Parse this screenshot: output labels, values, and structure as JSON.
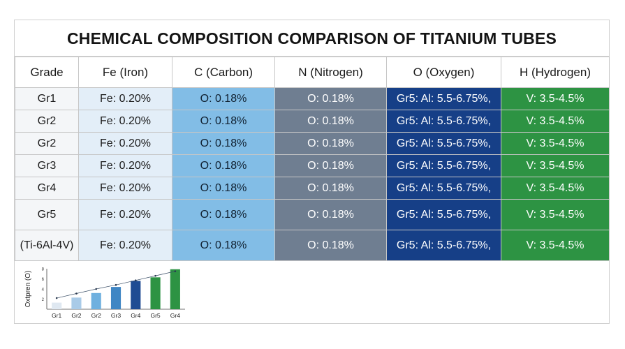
{
  "title": "CHEMICAL COMPOSITION COMPARISON OF TITANIUM TUBES",
  "table": {
    "headers": [
      "Grade",
      "Fe (Iron)",
      "C (Carbon)",
      "N (Nitrogen)",
      "O (Oxygen)",
      "H (Hydrogen)"
    ],
    "rows": [
      [
        "Gr1",
        "Fe: 0.20%",
        "O: 0.18%",
        "O: 0.18%",
        "Gr5: Al: 5.5-6.75%,",
        "V: 3.5-4.5%"
      ],
      [
        "Gr2",
        "Fe: 0.20%",
        "O: 0.18%",
        "O: 0.18%",
        "Gr5: Al: 5.5-6.75%,",
        "V: 3.5-4.5%"
      ],
      [
        "Gr2",
        "Fe: 0.20%",
        "O: 0.18%",
        "O: 0.18%",
        "Gr5: Al: 5.5-6.75%,",
        "V: 3.5-4.5%"
      ],
      [
        "Gr3",
        "Fe: 0.20%",
        "O: 0.18%",
        "O: 0.18%",
        "Gr5: Al: 5.5-6.75%,",
        "V: 3.5-4.5%"
      ],
      [
        "Gr4",
        "Fe: 0.20%",
        "O: 0.18%",
        "O: 0.18%",
        "Gr5: Al: 5.5-6.75%,",
        "V: 3.5-4.5%"
      ],
      [
        "Gr5",
        "Fe: 0.20%",
        "O: 0.18%",
        "O: 0.18%",
        "Gr5: Al: 5.5-6.75%,",
        "V: 3.5-4.5%"
      ],
      [
        "(Ti-6Al-4V)",
        "Fe: 0.20%",
        "O: 0.18%",
        "O: 0.18%",
        "Gr5: Al: 5.5-6.75%,",
        "V: 3.5-4.5%"
      ]
    ]
  },
  "colors": {
    "grade": "#f4f6f8",
    "fe": "#e3eef8",
    "carbon": "#82bde6",
    "nitrogen": "#6f7e91",
    "oxygen": "#163f87",
    "hydrogen": "#2d9343"
  },
  "chart_data": {
    "type": "bar",
    "ylabel": "Oxtpren (O)",
    "yticks": [
      "2",
      "4",
      "6",
      "8"
    ],
    "ylim": [
      0,
      8
    ],
    "categories": [
      "Gr1",
      "Gr2",
      "Gr2",
      "Gr3",
      "Gr4",
      "Gr5",
      "Gr4"
    ],
    "values": [
      1.3,
      2.3,
      3.2,
      4.4,
      5.6,
      6.3,
      7.9
    ],
    "trend": [
      2.2,
      3.1,
      4.0,
      4.8,
      5.7,
      6.6,
      7.5
    ],
    "bar_colors": [
      "#dfe8f1",
      "#a9cbe8",
      "#6fb0df",
      "#3f86c4",
      "#1f4c93",
      "#2d9343",
      "#2d9343"
    ]
  }
}
